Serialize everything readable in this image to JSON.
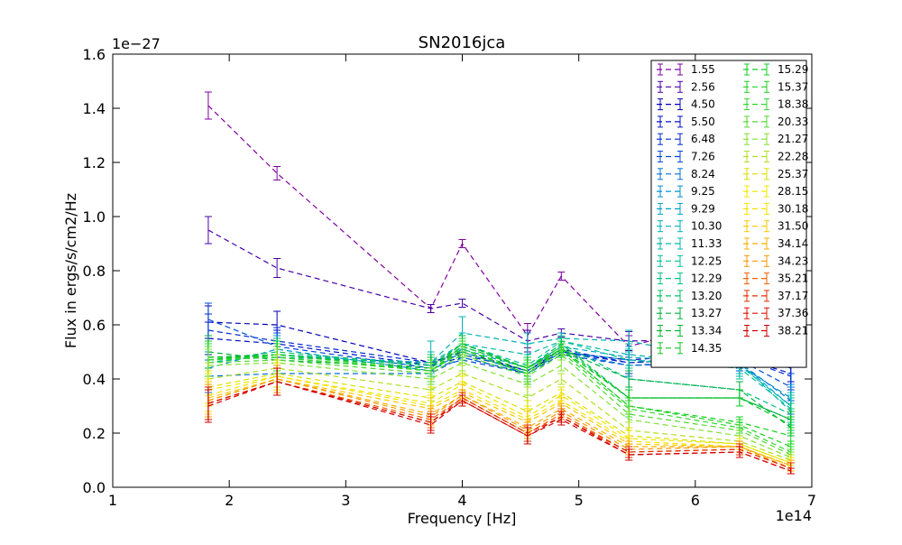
{
  "chart_data": {
    "type": "line",
    "title": "SN2016jca",
    "xlabel": "Frequency [Hz]",
    "ylabel": "Flux in ergs/s/cm2/Hz",
    "x_exponent_label": "1e14",
    "y_exponent_label": "1e−27",
    "xlim": [
      1,
      7
    ],
    "ylim": [
      0.0,
      1.6
    ],
    "x_ticks": [
      1,
      2,
      3,
      4,
      5,
      6,
      7
    ],
    "x_tick_labels": [
      "1",
      "2",
      "3",
      "4",
      "5",
      "6",
      "7"
    ],
    "y_ticks": [
      0.0,
      0.2,
      0.4,
      0.6,
      0.8,
      1.0,
      1.2,
      1.4,
      1.6
    ],
    "y_tick_labels": [
      "0.0",
      "0.2",
      "0.4",
      "0.6",
      "0.8",
      "1.0",
      "1.2",
      "1.4",
      "1.6"
    ],
    "grid": false,
    "legend_position": "top-right",
    "legend_columns": 2,
    "line_style": "dashed with error bars",
    "x": [
      1.82,
      2.41,
      3.73,
      4.0,
      4.56,
      4.85,
      5.43,
      6.38,
      6.82
    ],
    "series": [
      {
        "name": "1.55",
        "color": "#8000a0",
        "values": [
          1.41,
          1.16,
          0.66,
          0.9,
          0.56,
          0.78,
          0.52,
          0.63,
          0.58
        ],
        "errors": [
          0.05,
          0.025,
          0.015,
          0.015,
          0.045,
          0.015,
          0.04,
          0.05,
          0.06
        ]
      },
      {
        "name": "2.56",
        "color": "#4a00a8",
        "values": [
          0.95,
          0.81,
          0.66,
          0.68,
          0.54,
          0.57,
          0.54,
          0.55,
          0.52
        ],
        "errors": [
          0.05,
          0.035,
          0.015,
          0.015,
          0.04,
          0.015,
          0.035,
          0.04,
          0.05
        ]
      },
      {
        "name": "4.50",
        "color": "#0000b8",
        "values": [
          0.61,
          0.6,
          0.46,
          0.5,
          0.43,
          0.5,
          0.47,
          0.5,
          0.44
        ],
        "errors": [
          0.06,
          0.05,
          0.03,
          0.02,
          0.04,
          0.02,
          0.04,
          0.04,
          0.05
        ]
      },
      {
        "name": "5.50",
        "color": "#0010c8",
        "values": [
          0.55,
          0.53,
          0.45,
          0.48,
          0.42,
          0.5,
          0.46,
          0.48,
          0.42
        ],
        "errors": [
          0.06,
          0.05,
          0.03,
          0.02,
          0.04,
          0.02,
          0.04,
          0.04,
          0.05
        ]
      },
      {
        "name": "6.48",
        "color": "#0028d0",
        "values": [
          0.58,
          0.54,
          0.46,
          0.49,
          0.43,
          0.51,
          0.46,
          0.48,
          0.41
        ],
        "errors": [
          0.06,
          0.05,
          0.03,
          0.02,
          0.04,
          0.02,
          0.04,
          0.04,
          0.05
        ]
      },
      {
        "name": "7.26",
        "color": "#0048d8",
        "values": [
          0.62,
          0.52,
          0.44,
          0.47,
          0.42,
          0.49,
          0.45,
          0.47,
          0.37
        ],
        "errors": [
          0.06,
          0.05,
          0.03,
          0.02,
          0.04,
          0.02,
          0.04,
          0.04,
          0.05
        ]
      },
      {
        "name": "8.24",
        "color": "#0070d8",
        "values": [
          0.41,
          0.42,
          0.42,
          0.48,
          0.42,
          0.5,
          0.45,
          0.46,
          0.32
        ],
        "errors": [
          0.06,
          0.05,
          0.03,
          0.02,
          0.04,
          0.02,
          0.04,
          0.04,
          0.05
        ]
      },
      {
        "name": "9.25",
        "color": "#0090d0",
        "values": [
          0.44,
          0.51,
          0.43,
          0.5,
          0.42,
          0.5,
          0.47,
          0.45,
          0.33
        ],
        "errors": [
          0.06,
          0.05,
          0.03,
          0.02,
          0.04,
          0.02,
          0.04,
          0.04,
          0.05
        ]
      },
      {
        "name": "9.29",
        "color": "#00a0c8",
        "values": [
          0.46,
          0.49,
          0.45,
          0.51,
          0.44,
          0.52,
          0.48,
          0.46,
          0.3
        ],
        "errors": [
          0.06,
          0.05,
          0.03,
          0.02,
          0.04,
          0.02,
          0.04,
          0.04,
          0.05
        ]
      },
      {
        "name": "10.30",
        "color": "#00b0b8",
        "values": [
          0.47,
          0.48,
          0.46,
          0.57,
          0.53,
          0.55,
          0.54,
          0.46,
          0.28
        ],
        "errors": [
          0.06,
          0.05,
          0.08,
          0.06,
          0.04,
          0.02,
          0.04,
          0.04,
          0.05
        ]
      },
      {
        "name": "11.33",
        "color": "#00b8a8",
        "values": [
          0.46,
          0.49,
          0.46,
          0.53,
          0.49,
          0.54,
          0.49,
          0.45,
          0.3
        ],
        "errors": [
          0.06,
          0.05,
          0.04,
          0.04,
          0.04,
          0.02,
          0.04,
          0.04,
          0.05
        ]
      },
      {
        "name": "12.25",
        "color": "#00c098",
        "values": [
          0.47,
          0.49,
          0.45,
          0.53,
          0.45,
          0.54,
          0.47,
          0.44,
          0.29
        ],
        "errors": [
          0.06,
          0.05,
          0.04,
          0.03,
          0.04,
          0.02,
          0.04,
          0.04,
          0.05
        ]
      },
      {
        "name": "12.29",
        "color": "#00c080",
        "values": [
          0.46,
          0.49,
          0.45,
          0.53,
          0.44,
          0.53,
          0.4,
          0.36,
          0.27
        ],
        "errors": [
          0.06,
          0.05,
          0.04,
          0.03,
          0.04,
          0.02,
          0.04,
          0.03,
          0.04
        ]
      },
      {
        "name": "13.20",
        "color": "#00c060",
        "values": [
          0.47,
          0.5,
          0.45,
          0.53,
          0.44,
          0.53,
          0.33,
          0.33,
          0.25
        ],
        "errors": [
          0.06,
          0.05,
          0.04,
          0.03,
          0.04,
          0.02,
          0.03,
          0.03,
          0.04
        ]
      },
      {
        "name": "13.27",
        "color": "#00b040",
        "values": [
          0.5,
          0.47,
          0.44,
          0.52,
          0.44,
          0.51,
          0.4,
          0.36,
          0.22
        ],
        "errors": [
          0.06,
          0.05,
          0.04,
          0.03,
          0.04,
          0.02,
          0.03,
          0.03,
          0.03
        ]
      },
      {
        "name": "13.34",
        "color": "#00b830",
        "values": [
          0.48,
          0.49,
          0.44,
          0.53,
          0.44,
          0.51,
          0.33,
          0.33,
          0.25
        ],
        "errors": [
          0.06,
          0.05,
          0.04,
          0.03,
          0.04,
          0.02,
          0.03,
          0.03,
          0.03
        ]
      },
      {
        "name": "14.35",
        "color": "#10c820",
        "values": [
          0.48,
          0.48,
          0.43,
          0.52,
          0.44,
          0.52,
          0.33,
          0.33,
          0.23
        ],
        "errors": [
          0.06,
          0.05,
          0.04,
          0.03,
          0.04,
          0.02,
          0.03,
          0.03,
          0.03
        ]
      },
      {
        "name": "15.29",
        "color": "#10d020",
        "values": [
          0.47,
          0.49,
          0.43,
          0.51,
          0.43,
          0.51,
          0.3,
          0.24,
          0.19
        ],
        "errors": [
          0.06,
          0.05,
          0.04,
          0.03,
          0.04,
          0.02,
          0.03,
          0.02,
          0.03
        ]
      },
      {
        "name": "15.37",
        "color": "#20d020",
        "values": [
          0.47,
          0.48,
          0.43,
          0.51,
          0.42,
          0.51,
          0.3,
          0.23,
          0.15
        ],
        "errors": [
          0.06,
          0.05,
          0.04,
          0.03,
          0.04,
          0.02,
          0.03,
          0.02,
          0.02
        ]
      },
      {
        "name": "18.38",
        "color": "#30d830",
        "values": [
          0.47,
          0.48,
          0.43,
          0.5,
          0.42,
          0.5,
          0.29,
          0.22,
          0.13
        ],
        "errors": [
          0.06,
          0.05,
          0.04,
          0.03,
          0.04,
          0.02,
          0.03,
          0.02,
          0.02
        ]
      },
      {
        "name": "20.33",
        "color": "#50d830",
        "values": [
          0.46,
          0.47,
          0.42,
          0.49,
          0.41,
          0.49,
          0.27,
          0.21,
          0.12
        ],
        "errors": [
          0.06,
          0.05,
          0.04,
          0.03,
          0.04,
          0.02,
          0.03,
          0.02,
          0.02
        ]
      },
      {
        "name": "21.27",
        "color": "#80e030",
        "values": [
          0.45,
          0.46,
          0.4,
          0.46,
          0.38,
          0.45,
          0.25,
          0.19,
          0.11
        ],
        "errors": [
          0.06,
          0.05,
          0.04,
          0.03,
          0.04,
          0.02,
          0.03,
          0.02,
          0.02
        ]
      },
      {
        "name": "22.28",
        "color": "#b0e020",
        "values": [
          0.4,
          0.44,
          0.36,
          0.42,
          0.33,
          0.4,
          0.21,
          0.17,
          0.1
        ],
        "errors": [
          0.06,
          0.05,
          0.04,
          0.03,
          0.04,
          0.02,
          0.03,
          0.02,
          0.02
        ]
      },
      {
        "name": "25.37",
        "color": "#d8e000",
        "values": [
          0.37,
          0.42,
          0.33,
          0.39,
          0.28,
          0.35,
          0.19,
          0.16,
          0.09
        ],
        "errors": [
          0.06,
          0.05,
          0.04,
          0.03,
          0.04,
          0.02,
          0.03,
          0.02,
          0.02
        ]
      },
      {
        "name": "28.15",
        "color": "#f0e800",
        "values": [
          0.36,
          0.41,
          0.31,
          0.38,
          0.26,
          0.34,
          0.18,
          0.16,
          0.09
        ],
        "errors": [
          0.06,
          0.05,
          0.04,
          0.03,
          0.04,
          0.02,
          0.03,
          0.02,
          0.02
        ]
      },
      {
        "name": "30.18",
        "color": "#f8e000",
        "values": [
          0.34,
          0.41,
          0.3,
          0.36,
          0.25,
          0.32,
          0.17,
          0.15,
          0.08
        ],
        "errors": [
          0.06,
          0.05,
          0.04,
          0.03,
          0.04,
          0.02,
          0.02,
          0.02,
          0.02
        ]
      },
      {
        "name": "31.50",
        "color": "#f8c800",
        "values": [
          0.33,
          0.4,
          0.29,
          0.35,
          0.24,
          0.31,
          0.16,
          0.15,
          0.08
        ],
        "errors": [
          0.06,
          0.05,
          0.04,
          0.03,
          0.04,
          0.02,
          0.02,
          0.02,
          0.02
        ]
      },
      {
        "name": "34.14",
        "color": "#f8b000",
        "values": [
          0.32,
          0.4,
          0.27,
          0.34,
          0.22,
          0.29,
          0.15,
          0.15,
          0.08
        ],
        "errors": [
          0.06,
          0.05,
          0.03,
          0.02,
          0.03,
          0.02,
          0.02,
          0.02,
          0.02
        ]
      },
      {
        "name": "34.23",
        "color": "#f89800",
        "values": [
          0.32,
          0.4,
          0.26,
          0.34,
          0.21,
          0.28,
          0.14,
          0.15,
          0.07
        ],
        "errors": [
          0.06,
          0.05,
          0.03,
          0.02,
          0.03,
          0.02,
          0.02,
          0.02,
          0.02
        ]
      },
      {
        "name": "35.21",
        "color": "#f06000",
        "values": [
          0.31,
          0.39,
          0.25,
          0.33,
          0.2,
          0.27,
          0.13,
          0.14,
          0.07
        ],
        "errors": [
          0.06,
          0.05,
          0.03,
          0.02,
          0.03,
          0.02,
          0.02,
          0.02,
          0.02
        ]
      },
      {
        "name": "37.17",
        "color": "#e03000",
        "values": [
          0.31,
          0.39,
          0.24,
          0.33,
          0.2,
          0.26,
          0.13,
          0.14,
          0.07
        ],
        "errors": [
          0.06,
          0.05,
          0.03,
          0.02,
          0.03,
          0.02,
          0.02,
          0.02,
          0.02
        ]
      },
      {
        "name": "37.36",
        "color": "#d81000",
        "values": [
          0.31,
          0.39,
          0.24,
          0.32,
          0.19,
          0.26,
          0.12,
          0.13,
          0.06
        ],
        "errors": [
          0.06,
          0.05,
          0.03,
          0.02,
          0.03,
          0.02,
          0.02,
          0.02,
          0.01
        ]
      },
      {
        "name": "38.21",
        "color": "#d00000",
        "values": [
          0.3,
          0.39,
          0.23,
          0.32,
          0.19,
          0.25,
          0.12,
          0.13,
          0.06
        ],
        "errors": [
          0.06,
          0.05,
          0.03,
          0.02,
          0.03,
          0.02,
          0.02,
          0.02,
          0.01
        ]
      }
    ]
  }
}
